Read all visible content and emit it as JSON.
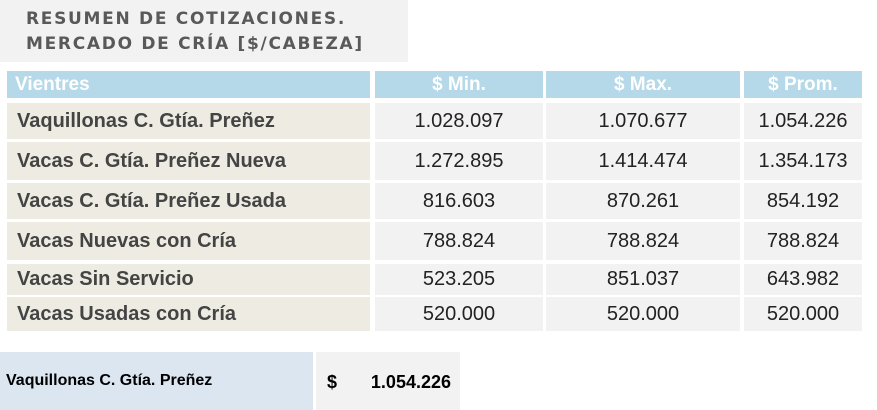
{
  "title": {
    "line1": "RESUMEN DE COTIZACIONES.",
    "line2": "MERCADO DE CRÍA [$/CABEZA]"
  },
  "table": {
    "headers": [
      "Vientres",
      "$ Min.",
      "$ Max.",
      "$ Prom."
    ],
    "rows": [
      {
        "label": "Vaquillonas C. Gtía. Preñez",
        "min": "1.028.097",
        "max": "1.070.677",
        "prom": "1.054.226"
      },
      {
        "label": "Vacas C. Gtía. Preñez Nueva",
        "min": "1.272.895",
        "max": "1.414.474",
        "prom": "1.354.173"
      },
      {
        "label": "Vacas C. Gtía. Preñez Usada",
        "min": "816.603",
        "max": "870.261",
        "prom": "854.192"
      },
      {
        "label": "Vacas Nuevas con Cría",
        "min": "788.824",
        "max": "788.824",
        "prom": "788.824"
      },
      {
        "label": "Vacas Sin Servicio",
        "min": "523.205",
        "max": "851.037",
        "prom": "643.982"
      },
      {
        "label": "Vacas Usadas con Cría",
        "min": "520.000",
        "max": "520.000",
        "prom": "520.000"
      }
    ]
  },
  "summary": {
    "label": "Vaquillonas C. Gtía. Preñez",
    "currency": "$",
    "value": "1.054.226"
  }
}
